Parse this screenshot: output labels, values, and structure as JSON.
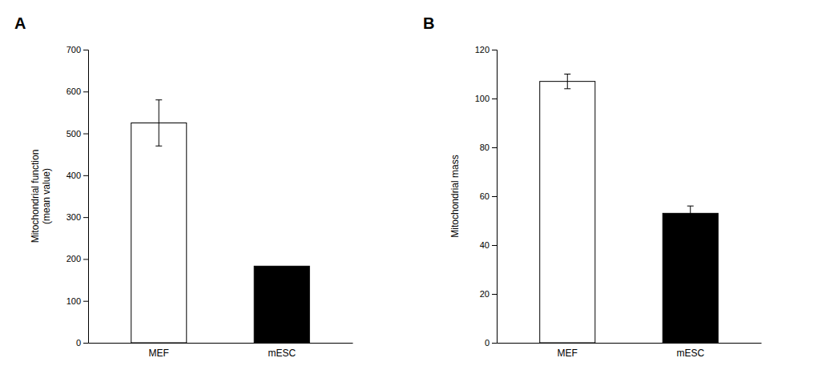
{
  "chart_data": [
    {
      "type": "bar",
      "title": "A",
      "categories": [
        "MEF",
        "mESC"
      ],
      "values": [
        525,
        183
      ],
      "errors": [
        55,
        0
      ],
      "colors": [
        "white",
        "black"
      ],
      "y_label": "Mitochondrial function\n(mean value)",
      "ylim": [
        0,
        700
      ],
      "yticks": [
        0,
        100,
        200,
        300,
        400,
        500,
        600,
        700
      ],
      "grid": false
    },
    {
      "type": "bar",
      "title": "B",
      "categories": [
        "MEF",
        "mESC"
      ],
      "values": [
        107,
        53
      ],
      "errors": [
        3,
        3
      ],
      "colors": [
        "white",
        "black"
      ],
      "y_label": "Mitochondrial mass",
      "ylim": [
        0,
        120
      ],
      "yticks": [
        0,
        20,
        40,
        60,
        80,
        100,
        120
      ],
      "grid": false
    }
  ]
}
